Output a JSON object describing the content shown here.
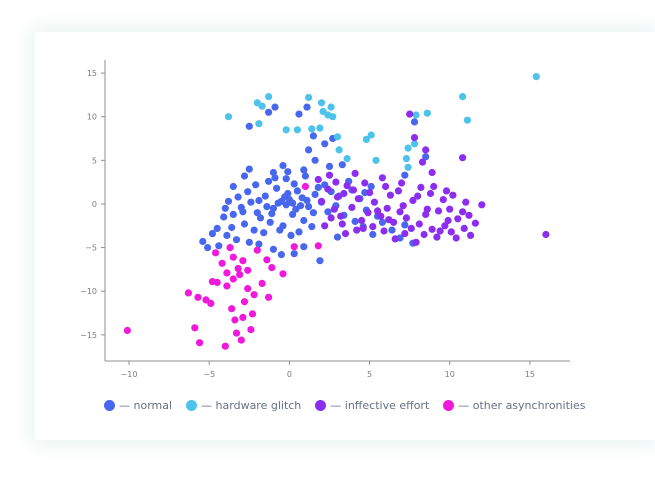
{
  "chart_data": {
    "type": "scatter",
    "title": "",
    "xlabel": "",
    "ylabel": "",
    "xlim": [
      -11.5,
      17.5
    ],
    "ylim": [
      -18,
      16.5
    ],
    "x_ticks": [
      -10,
      -5,
      0,
      5,
      10,
      15
    ],
    "y_ticks": [
      15,
      10,
      5,
      0,
      -5,
      -10,
      -15
    ],
    "grid": false,
    "legend_position": "bottom",
    "series": [
      {
        "name": "— normal",
        "color": "#4867ee",
        "points": [
          [
            -1.0,
            -0.5
          ],
          [
            -0.5,
            0.3
          ],
          [
            0.2,
            -1.2
          ],
          [
            0.8,
            0.7
          ],
          [
            -1.5,
            0.9
          ],
          [
            -0.2,
            -0.1
          ],
          [
            0.5,
            1.5
          ],
          [
            -2.0,
            -1.0
          ],
          [
            -1.2,
            -2.1
          ],
          [
            1.2,
            -0.3
          ],
          [
            0.0,
            0.5
          ],
          [
            -0.8,
            1.8
          ],
          [
            1.6,
            1.1
          ],
          [
            -2.4,
            0.2
          ],
          [
            -0.4,
            -2.5
          ],
          [
            0.9,
            -1.9
          ],
          [
            -1.8,
            -1.6
          ],
          [
            1.5,
            -1.0
          ],
          [
            -2.6,
            1.4
          ],
          [
            0.3,
            2.3
          ],
          [
            -1.3,
            2.6
          ],
          [
            2.0,
            0.2
          ],
          [
            -3.0,
            -0.4
          ],
          [
            -0.6,
            -3.0
          ],
          [
            1.8,
            1.9
          ],
          [
            -2.1,
            2.2
          ],
          [
            2.4,
            -0.9
          ],
          [
            -3.2,
            0.8
          ],
          [
            0.6,
            -3.2
          ],
          [
            -1.6,
            -3.3
          ],
          [
            2.6,
            1.4
          ],
          [
            -3.5,
            -1.2
          ],
          [
            -0.9,
            3.0
          ],
          [
            1.0,
            3.2
          ],
          [
            -2.8,
            -2.3
          ],
          [
            2.9,
            -0.2
          ],
          [
            -3.8,
            0.3
          ],
          [
            0.1,
            -3.6
          ],
          [
            3.1,
            0.9
          ],
          [
            -2.2,
            -3.0
          ],
          [
            -0.1,
            1.2
          ],
          [
            0.4,
            -0.6
          ],
          [
            -0.7,
            0.1
          ],
          [
            1.1,
            0.4
          ],
          [
            -1.1,
            -1.1
          ],
          [
            0.7,
            -0.2
          ],
          [
            -0.3,
            0.8
          ],
          [
            0.2,
            0.1
          ],
          [
            -1.9,
            0.4
          ],
          [
            -1.4,
            -0.3
          ],
          [
            2.2,
            2.2
          ],
          [
            -0.2,
            2.9
          ],
          [
            1.4,
            -2.6
          ],
          [
            -2.9,
            -0.9
          ],
          [
            3.4,
            -1.3
          ],
          [
            -4.1,
            -1.5
          ],
          [
            -3.6,
            -2.7
          ],
          [
            -4.5,
            -2.8
          ],
          [
            -3.9,
            -3.6
          ],
          [
            -4.8,
            -3.4
          ],
          [
            -4.4,
            -4.8
          ],
          [
            -5.1,
            -5.0
          ],
          [
            -5.4,
            -4.3
          ],
          [
            -3.3,
            -4.1
          ],
          [
            -2.5,
            -4.4
          ],
          [
            -1.9,
            -4.6
          ],
          [
            -1.0,
            -5.2
          ],
          [
            0.3,
            -5.7
          ],
          [
            -0.5,
            -5.8
          ],
          [
            0.9,
            -4.9
          ],
          [
            1.9,
            -6.5
          ],
          [
            3.0,
            -3.8
          ],
          [
            4.1,
            -2.0
          ],
          [
            4.6,
            -2.6
          ],
          [
            5.2,
            -3.5
          ],
          [
            5.8,
            -2.1
          ],
          [
            6.4,
            -3.0
          ],
          [
            7.2,
            -2.4
          ],
          [
            7.7,
            -4.5
          ],
          [
            6.9,
            -3.9
          ],
          [
            5.5,
            -1.4
          ],
          [
            4.8,
            -0.7
          ],
          [
            3.7,
            2.6
          ],
          [
            2.5,
            4.3
          ],
          [
            1.6,
            5.0
          ],
          [
            1.2,
            6.2
          ],
          [
            2.2,
            6.9
          ],
          [
            2.7,
            7.5
          ],
          [
            1.5,
            7.8
          ],
          [
            3.3,
            4.5
          ],
          [
            0.9,
            3.9
          ],
          [
            -0.1,
            3.7
          ],
          [
            -1.0,
            3.6
          ],
          [
            -0.4,
            4.4
          ],
          [
            0.6,
            10.3
          ],
          [
            1.1,
            11.1
          ],
          [
            -1.3,
            10.5
          ],
          [
            -2.5,
            8.9
          ],
          [
            -0.9,
            11.1
          ],
          [
            8.5,
            5.4
          ],
          [
            7.8,
            9.4
          ],
          [
            7.2,
            3.3
          ],
          [
            4.7,
            1.3
          ],
          [
            5.1,
            2.0
          ],
          [
            3.9,
            1.6
          ],
          [
            4.4,
            0.6
          ],
          [
            -2.8,
            3.2
          ],
          [
            -3.5,
            2.0
          ],
          [
            -2.5,
            4.0
          ],
          [
            -4.0,
            -0.5
          ]
        ]
      },
      {
        "name": "— hardware glitch",
        "color": "#4dc3ec",
        "points": [
          [
            -3.8,
            10.0
          ],
          [
            -2.0,
            11.6
          ],
          [
            -1.3,
            12.3
          ],
          [
            1.2,
            12.2
          ],
          [
            2.0,
            11.6
          ],
          [
            2.1,
            10.6
          ],
          [
            2.4,
            10.2
          ],
          [
            1.9,
            8.7
          ],
          [
            1.4,
            8.6
          ],
          [
            0.5,
            8.5
          ],
          [
            -0.2,
            8.5
          ],
          [
            -1.9,
            9.2
          ],
          [
            2.7,
            10.0
          ],
          [
            3.0,
            7.7
          ],
          [
            3.1,
            6.2
          ],
          [
            3.6,
            5.2
          ],
          [
            4.8,
            7.4
          ],
          [
            5.1,
            7.9
          ],
          [
            5.4,
            5.0
          ],
          [
            7.3,
            5.2
          ],
          [
            7.4,
            4.2
          ],
          [
            7.4,
            6.4
          ],
          [
            7.8,
            6.9
          ],
          [
            7.9,
            10.2
          ],
          [
            8.6,
            10.4
          ],
          [
            10.8,
            12.3
          ],
          [
            11.1,
            9.6
          ],
          [
            15.4,
            14.6
          ],
          [
            -1.7,
            11.2
          ],
          [
            2.6,
            11.1
          ]
        ]
      },
      {
        "name": "— inffective effort",
        "color": "#8b2ef0",
        "points": [
          [
            2.0,
            0.3
          ],
          [
            2.8,
            -0.6
          ],
          [
            3.4,
            1.2
          ],
          [
            3.9,
            -0.4
          ],
          [
            4.3,
            0.6
          ],
          [
            4.9,
            -1.0
          ],
          [
            5.3,
            0.2
          ],
          [
            5.7,
            -1.4
          ],
          [
            6.1,
            -0.5
          ],
          [
            6.5,
            -2.1
          ],
          [
            6.9,
            -0.9
          ],
          [
            7.3,
            -1.6
          ],
          [
            7.7,
            0.4
          ],
          [
            8.1,
            -2.3
          ],
          [
            8.5,
            -1.2
          ],
          [
            8.9,
            -2.9
          ],
          [
            9.3,
            -0.8
          ],
          [
            9.7,
            -2.5
          ],
          [
            10.1,
            -3.2
          ],
          [
            10.5,
            -1.7
          ],
          [
            10.9,
            -2.8
          ],
          [
            11.3,
            -3.6
          ],
          [
            11.6,
            -2.2
          ],
          [
            5.2,
            -2.6
          ],
          [
            5.9,
            -3.1
          ],
          [
            6.3,
            1.0
          ],
          [
            6.8,
            1.5
          ],
          [
            7.2,
            -3.4
          ],
          [
            7.6,
            -2.8
          ],
          [
            8.0,
            0.9
          ],
          [
            8.4,
            -3.5
          ],
          [
            8.8,
            1.2
          ],
          [
            9.2,
            -3.8
          ],
          [
            9.6,
            0.5
          ],
          [
            10.0,
            -0.6
          ],
          [
            10.4,
            -3.9
          ],
          [
            10.8,
            -0.9
          ],
          [
            11.2,
            -1.3
          ],
          [
            3.2,
            -1.4
          ],
          [
            3.6,
            2.1
          ],
          [
            4.0,
            1.6
          ],
          [
            4.5,
            -1.9
          ],
          [
            4.7,
            2.4
          ],
          [
            5.0,
            1.3
          ],
          [
            2.4,
            1.7
          ],
          [
            2.9,
            2.5
          ],
          [
            2.6,
            -1.6
          ],
          [
            3.3,
            -2.3
          ],
          [
            6.0,
            2.0
          ],
          [
            7.0,
            2.4
          ],
          [
            8.2,
            1.9
          ],
          [
            9.0,
            2.0
          ],
          [
            9.8,
            1.5
          ],
          [
            10.2,
            1.0
          ],
          [
            11.0,
            0.2
          ],
          [
            12.0,
            -0.1
          ],
          [
            8.3,
            4.8
          ],
          [
            8.5,
            6.2
          ],
          [
            7.8,
            7.6
          ],
          [
            8.9,
            3.6
          ],
          [
            7.5,
            10.3
          ],
          [
            10.8,
            5.3
          ],
          [
            16.0,
            -3.5
          ],
          [
            3.5,
            -3.4
          ],
          [
            4.2,
            -3.0
          ],
          [
            6.6,
            -4.0
          ],
          [
            7.9,
            -4.4
          ],
          [
            9.4,
            -3.1
          ],
          [
            5.5,
            -0.8
          ],
          [
            6.2,
            -1.8
          ],
          [
            7.1,
            -0.2
          ],
          [
            8.6,
            -0.6
          ],
          [
            9.9,
            -1.9
          ],
          [
            4.6,
            -2.8
          ],
          [
            3.0,
            0.8
          ],
          [
            2.2,
            -2.5
          ],
          [
            1.8,
            2.8
          ],
          [
            2.5,
            3.3
          ],
          [
            4.1,
            3.5
          ],
          [
            5.8,
            3.0
          ]
        ]
      },
      {
        "name": "— other asynchronities",
        "color": "#f018db",
        "points": [
          [
            -10.1,
            -14.5
          ],
          [
            -6.3,
            -10.2
          ],
          [
            -5.7,
            -10.7
          ],
          [
            -5.2,
            -11.0
          ],
          [
            -4.9,
            -11.4
          ],
          [
            -4.5,
            -9.0
          ],
          [
            -3.9,
            -9.4
          ],
          [
            -3.5,
            -8.6
          ],
          [
            -3.1,
            -8.1
          ],
          [
            -2.6,
            -9.7
          ],
          [
            -2.2,
            -10.4
          ],
          [
            -2.8,
            -11.2
          ],
          [
            -3.6,
            -12.0
          ],
          [
            -5.9,
            -14.2
          ],
          [
            -5.6,
            -15.9
          ],
          [
            -4.0,
            -16.3
          ],
          [
            -3.0,
            -15.6
          ],
          [
            -3.3,
            -14.8
          ],
          [
            -2.4,
            -14.4
          ],
          [
            -2.9,
            -13.0
          ],
          [
            -3.4,
            -13.3
          ],
          [
            -4.6,
            -5.6
          ],
          [
            -4.2,
            -6.8
          ],
          [
            -3.5,
            -6.1
          ],
          [
            -2.9,
            -6.5
          ],
          [
            -2.6,
            -7.6
          ],
          [
            -2.0,
            -5.3
          ],
          [
            -1.4,
            -6.4
          ],
          [
            -1.1,
            -7.3
          ],
          [
            -0.4,
            -8.0
          ],
          [
            -1.7,
            -9.1
          ],
          [
            -1.3,
            -10.7
          ],
          [
            -3.9,
            -7.9
          ],
          [
            -4.8,
            -8.9
          ],
          [
            -3.2,
            -7.4
          ],
          [
            0.3,
            -4.9
          ],
          [
            1.8,
            -4.8
          ],
          [
            1.0,
            2.0
          ],
          [
            -2.3,
            -12.6
          ],
          [
            -3.7,
            -5.0
          ]
        ]
      }
    ]
  }
}
